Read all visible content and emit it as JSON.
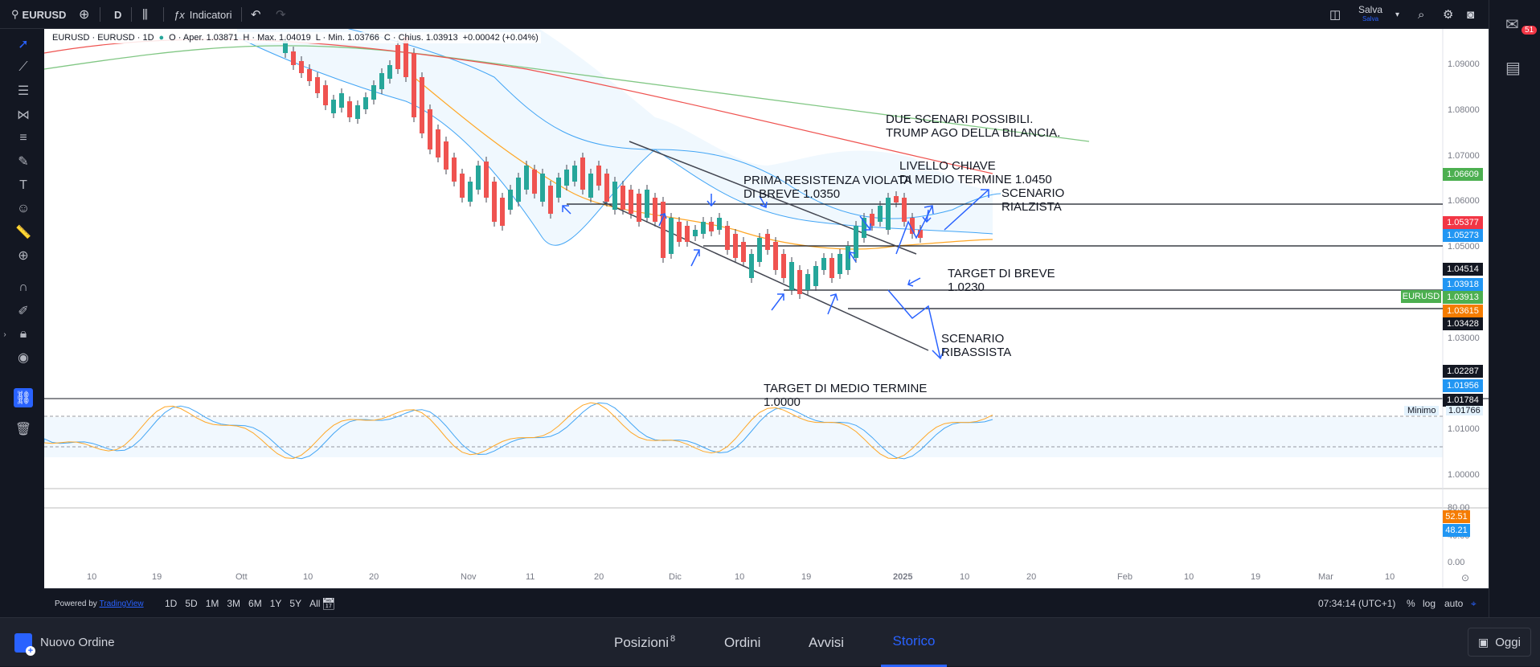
{
  "topbar": {
    "symbol": "EURUSD",
    "interval": "D",
    "indicators_label": "Indicatori",
    "save_label": "Salva",
    "save_sub": "Salva",
    "notification_count": "51"
  },
  "legend": {
    "title": "EURUSD · EURUSD · 1D",
    "open": "O · Aper. 1.03871",
    "high": "H · Max. 1.04019",
    "low": "L · Min. 1.03766",
    "close": "C · Chius. 1.03913",
    "change": "+0.00042 (+0.04%)"
  },
  "price_axis": [
    "1.09000",
    "1.08000",
    "1.07000",
    "1.06000",
    "1.05000",
    "1.04000",
    "1.03000",
    "1.02000",
    "1.01000",
    "1.00000"
  ],
  "price_tags": [
    {
      "value": "1.06609",
      "color": "#4caf50"
    },
    {
      "value": "1.05377",
      "color": "#f23645"
    },
    {
      "value": "1.05273",
      "color": "#2196f3"
    },
    {
      "value": "1.04514",
      "color": "#131722"
    },
    {
      "value": "1.03918",
      "color": "#2196f3"
    },
    {
      "value": "1.03913",
      "color": "#4caf50"
    },
    {
      "value": "1.03615",
      "color": "#f57c00"
    },
    {
      "value": "1.03428",
      "color": "#131722"
    },
    {
      "value": "1.02287",
      "color": "#131722"
    },
    {
      "value": "1.01956",
      "color": "#2196f3"
    },
    {
      "value": "1.01784",
      "color": "#131722"
    }
  ],
  "symbol_tag": "EURUSD",
  "minimo_label": "Minimo",
  "minimo_value": "1.01766",
  "osc_axis": [
    "80.00",
    "40.00",
    "0.00"
  ],
  "osc_tags": [
    {
      "value": "52.51",
      "color": "#f57c00"
    },
    {
      "value": "48.21",
      "color": "#2196f3"
    }
  ],
  "time_axis": [
    "10",
    "19",
    "Ott",
    "10",
    "20",
    "Nov",
    "11",
    "20",
    "Dic",
    "10",
    "19",
    "2025",
    "10",
    "20",
    "Feb",
    "10",
    "19",
    "Mar",
    "10"
  ],
  "annotations": {
    "due_scenari": "DUE SCENARI POSSIBILI.\nTRUMP AGO DELLA BILANCIA.",
    "livello_chiave": "LIVELLO CHIAVE\nDI MEDIO TERMINE 1.0450",
    "prima_resistenza": "PRIMA RESISTENZA VIOLATA\nDI BREVE 1.0350",
    "scenario_rialzista": "SCENARIO\nRIALZISTA",
    "target_breve": "TARGET DI BREVE\n1.0230",
    "scenario_ribassista": "SCENARIO\nRIBASSISTA",
    "target_medio": "TARGET DI MEDIO TERMINE\n1.0000"
  },
  "bottom_toolbar": {
    "powered": "Powered by",
    "brand": "TradingView",
    "ranges": [
      "1D",
      "5D",
      "1M",
      "3M",
      "6M",
      "1Y",
      "5Y",
      "All"
    ],
    "clock": "07:34:14 (UTC+1)",
    "percent": "%",
    "log": "log",
    "auto": "auto"
  },
  "footer": {
    "new_order": "Nuovo Ordine",
    "tabs": [
      "Posizioni",
      "Ordini",
      "Avvisi",
      "Storico"
    ],
    "positions_count": "8",
    "active_tab": "Storico",
    "today": "Oggi"
  },
  "colors": {
    "up": "#26a69a",
    "down": "#ef5350",
    "accent": "#2962ff"
  }
}
